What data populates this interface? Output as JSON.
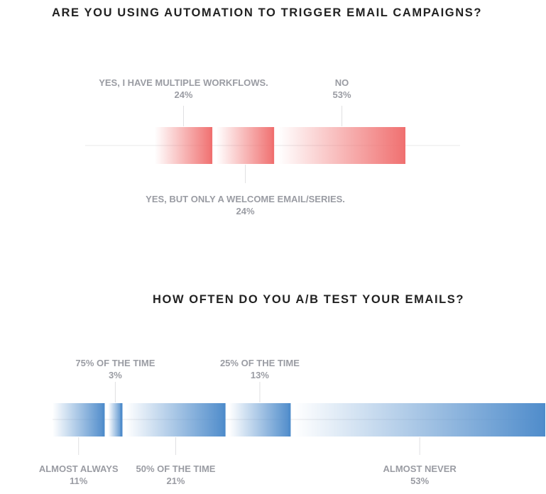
{
  "chart_data": [
    {
      "type": "bar",
      "title": "ARE YOU USING AUTOMATION TO TRIGGER EMAIL CAMPAIGNS?",
      "color": "#f07070",
      "categories": [
        "YES, I HAVE MULTIPLE WORKFLOWS.",
        "YES, BUT ONLY A WELCOME EMAIL/SERIES.",
        "NO"
      ],
      "values": [
        24,
        24,
        53
      ],
      "value_labels": [
        "24%",
        "24%",
        "53%"
      ],
      "label_positions": [
        "top",
        "bottom",
        "top"
      ]
    },
    {
      "type": "bar",
      "title": "HOW OFTEN DO YOU A/B TEST YOUR EMAILS?",
      "color": "#4f8ccb",
      "categories": [
        "ALMOST ALWAYS",
        "75% OF THE TIME",
        "50% OF THE TIME",
        "25% OF THE TIME",
        "ALMOST NEVER"
      ],
      "values": [
        11,
        3,
        21,
        13,
        53
      ],
      "value_labels": [
        "11%",
        "3%",
        "21%",
        "13%",
        "53%"
      ],
      "label_positions": [
        "bottom",
        "top",
        "bottom",
        "top",
        "bottom"
      ]
    }
  ]
}
